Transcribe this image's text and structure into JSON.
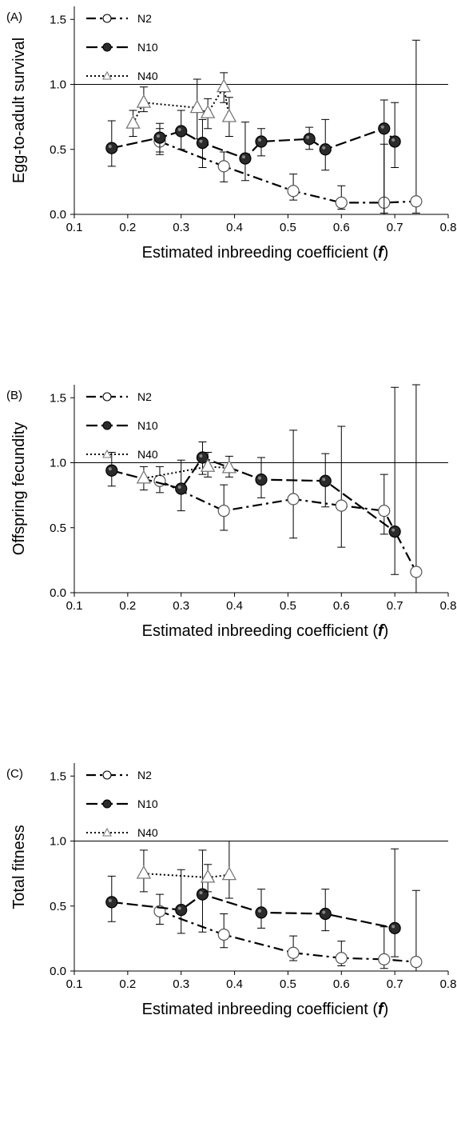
{
  "figure": {
    "title": ""
  },
  "chart_data": [
    {
      "type": "line",
      "panel_label": "(A)",
      "xlabel": "Estimated inbreeding coefficient (f)",
      "xlabel_main": "Estimated inbreeding coefficient (",
      "xlabel_italic": "f",
      "xlabel_end": ")",
      "ylabel": "Egg-to-adult survival",
      "xlim": [
        0.1,
        0.8
      ],
      "ylim": [
        0.0,
        1.6
      ],
      "xticks": [
        "0.1",
        "0.2",
        "0.3",
        "0.4",
        "0.5",
        "0.6",
        "0.7",
        "0.8"
      ],
      "yticks": [
        "0.0",
        "0.5",
        "1.0",
        "1.5"
      ],
      "reference_line": 1.0,
      "legend_placement": "top-left",
      "series": [
        {
          "name": "N2",
          "marker": "open-circle",
          "line": "dash-dot",
          "x": [
            0.26,
            0.38,
            0.51,
            0.6,
            0.68,
            0.74
          ],
          "y": [
            0.56,
            0.37,
            0.18,
            0.09,
            0.09,
            0.1
          ],
          "err_low": [
            0.46,
            0.25,
            0.11,
            0.04,
            0.01,
            0.01
          ],
          "err_high": [
            0.66,
            0.48,
            0.31,
            0.22,
            0.54,
            1.34
          ]
        },
        {
          "name": "N10",
          "marker": "filled-circle",
          "line": "long-dash",
          "x": [
            0.17,
            0.26,
            0.3,
            0.34,
            0.42,
            0.45,
            0.54,
            0.57,
            0.68,
            0.7
          ],
          "y": [
            0.51,
            0.59,
            0.64,
            0.55,
            0.43,
            0.56,
            0.58,
            0.5,
            0.66,
            0.56
          ],
          "err_low": [
            0.37,
            0.48,
            0.5,
            0.36,
            0.26,
            0.45,
            0.5,
            0.34,
            0.0,
            0.36
          ],
          "err_high": [
            0.72,
            0.7,
            0.8,
            0.73,
            0.71,
            0.66,
            0.67,
            0.73,
            0.88,
            0.86
          ]
        },
        {
          "name": "N40",
          "marker": "open-triangle",
          "line": "dotted",
          "x": [
            0.21,
            0.23,
            0.33,
            0.35,
            0.38,
            0.39
          ],
          "y": [
            0.7,
            0.86,
            0.82,
            0.78,
            0.98,
            0.75
          ],
          "err_low": [
            0.6,
            0.79,
            0.58,
            0.66,
            0.86,
            0.6
          ],
          "err_high": [
            0.8,
            0.98,
            1.04,
            0.89,
            1.09,
            0.9
          ]
        }
      ]
    },
    {
      "type": "line",
      "panel_label": "(B)",
      "xlabel": "Estimated inbreeding coefficient (f)",
      "xlabel_main": "Estimated inbreeding coefficient (",
      "xlabel_italic": "f",
      "xlabel_end": ")",
      "ylabel": "Offspring fecundity",
      "xlim": [
        0.1,
        0.8
      ],
      "ylim": [
        0.0,
        1.6
      ],
      "xticks": [
        "0.1",
        "0.2",
        "0.3",
        "0.4",
        "0.5",
        "0.6",
        "0.7",
        "0.8"
      ],
      "yticks": [
        "0.0",
        "0.5",
        "1.0",
        "1.5"
      ],
      "reference_line": 1.0,
      "legend_placement": "top-left",
      "series": [
        {
          "name": "N2",
          "marker": "open-circle",
          "line": "dash-dot",
          "x": [
            0.26,
            0.38,
            0.51,
            0.6,
            0.68,
            0.74
          ],
          "y": [
            0.86,
            0.63,
            0.72,
            0.67,
            0.63,
            0.16
          ],
          "err_low": [
            0.77,
            0.48,
            0.42,
            0.35,
            0.45,
            0.0
          ],
          "err_high": [
            0.97,
            0.83,
            1.25,
            1.28,
            0.91,
            1.6
          ]
        },
        {
          "name": "N10",
          "marker": "filled-circle",
          "line": "long-dash",
          "x": [
            0.17,
            0.3,
            0.34,
            0.45,
            0.57,
            0.7
          ],
          "y": [
            0.94,
            0.8,
            1.04,
            0.87,
            0.86,
            0.47
          ],
          "err_low": [
            0.82,
            0.63,
            0.91,
            0.73,
            0.66,
            0.14
          ],
          "err_high": [
            1.08,
            1.02,
            1.16,
            1.04,
            1.07,
            1.58
          ]
        },
        {
          "name": "N40",
          "marker": "open-triangle",
          "line": "dotted",
          "x": [
            0.23,
            0.35,
            0.39
          ],
          "y": [
            0.88,
            0.97,
            0.96
          ],
          "err_low": [
            0.79,
            0.89,
            0.89
          ],
          "err_high": [
            0.97,
            1.08,
            1.05
          ]
        }
      ]
    },
    {
      "type": "line",
      "panel_label": "(C)",
      "xlabel": "Estimated inbreeding coefficient (f)",
      "xlabel_main": "Estimated inbreeding coefficient (",
      "xlabel_italic": "f",
      "xlabel_end": ")",
      "ylabel": "Total fitness",
      "xlim": [
        0.1,
        0.8
      ],
      "ylim": [
        0.0,
        1.6
      ],
      "xticks": [
        "0.1",
        "0.2",
        "0.3",
        "0.4",
        "0.5",
        "0.6",
        "0.7",
        "0.8"
      ],
      "yticks": [
        "0.0",
        "0.5",
        "1.0",
        "1.5"
      ],
      "reference_line": 1.0,
      "legend_placement": "top-left",
      "series": [
        {
          "name": "N2",
          "marker": "open-circle",
          "line": "dash-dot",
          "x": [
            0.26,
            0.38,
            0.51,
            0.6,
            0.68,
            0.74
          ],
          "y": [
            0.46,
            0.28,
            0.14,
            0.1,
            0.09,
            0.07
          ],
          "err_low": [
            0.36,
            0.18,
            0.08,
            0.04,
            0.02,
            0.0
          ],
          "err_high": [
            0.59,
            0.44,
            0.27,
            0.23,
            0.34,
            0.62
          ]
        },
        {
          "name": "N10",
          "marker": "filled-circle",
          "line": "long-dash",
          "x": [
            0.17,
            0.3,
            0.34,
            0.45,
            0.57,
            0.7
          ],
          "y": [
            0.53,
            0.47,
            0.59,
            0.45,
            0.44,
            0.33
          ],
          "err_low": [
            0.38,
            0.29,
            0.3,
            0.33,
            0.31,
            0.11
          ],
          "err_high": [
            0.73,
            0.78,
            0.93,
            0.63,
            0.63,
            0.94
          ]
        },
        {
          "name": "N40",
          "marker": "open-triangle",
          "line": "dotted",
          "x": [
            0.23,
            0.35,
            0.39
          ],
          "y": [
            0.75,
            0.72,
            0.74
          ],
          "err_low": [
            0.61,
            0.61,
            0.56
          ],
          "err_high": [
            0.93,
            0.82,
            1.0
          ]
        }
      ]
    }
  ]
}
